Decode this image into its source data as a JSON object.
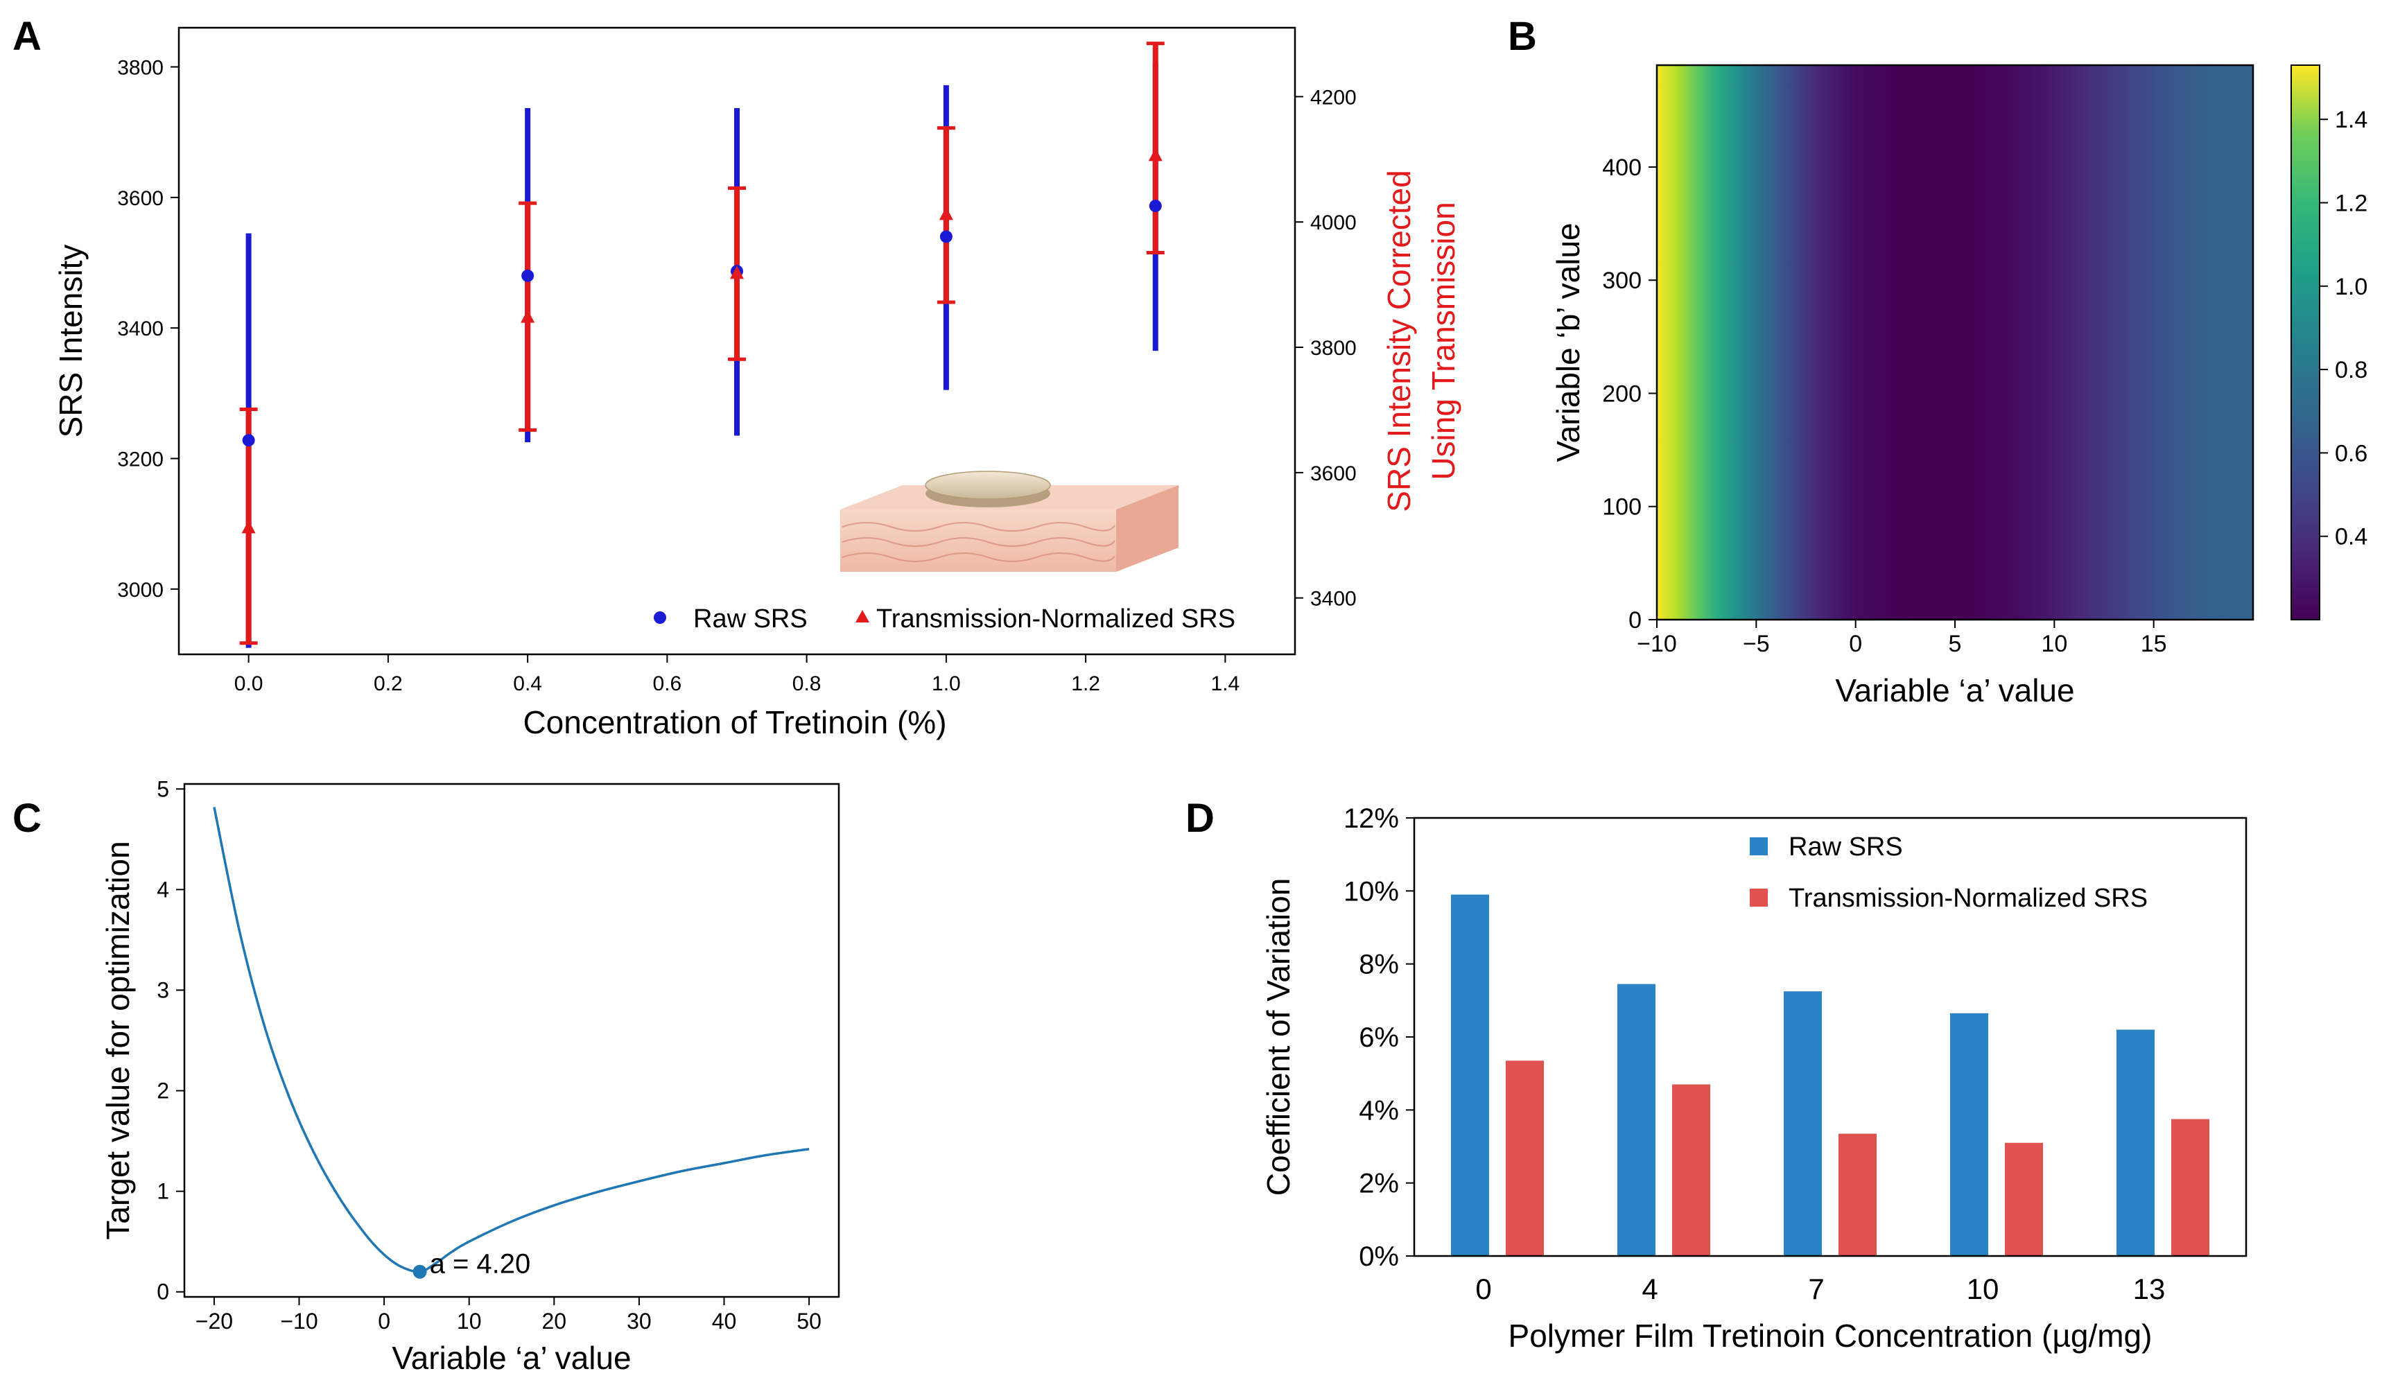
{
  "panel_labels": [
    "A",
    "B",
    "C",
    "D"
  ],
  "colors": {
    "blue": "#1a1ad4",
    "red": "#e31a1c",
    "line": "#1f77b4",
    "bar_blue": "#2b83c5",
    "bar_red": "#e0524f"
  },
  "chart_data": [
    {
      "panel": "A",
      "type": "scatter",
      "title": "",
      "xlabel": "Concentration of Tretinoin (%)",
      "ylabel": "SRS Intensity",
      "y2label_line1": "SRS Intensity Corrected",
      "y2label_line2": "Using Transmission",
      "xlim": [
        -0.1,
        1.5
      ],
      "ylim": [
        2900,
        3860
      ],
      "y2lim": [
        3310,
        4310
      ],
      "xticks": [
        "0.0",
        "0.2",
        "0.4",
        "0.6",
        "0.8",
        "1.0",
        "1.2",
        "1.4"
      ],
      "yticks": [
        "3000",
        "3200",
        "3400",
        "3600",
        "3800"
      ],
      "y2ticks": [
        "3400",
        "3600",
        "3800",
        "4000",
        "4200"
      ],
      "series": [
        {
          "name": "Raw SRS",
          "axis": "left",
          "marker": "circle",
          "x": [
            0.0,
            0.4,
            0.7,
            1.0,
            1.3
          ],
          "y": [
            3228,
            3480,
            3487,
            3540,
            3587
          ],
          "err_low": [
            2910,
            3225,
            3235,
            3305,
            3365
          ],
          "err_high": [
            3545,
            3737,
            3737,
            3772,
            3805
          ]
        },
        {
          "name": "Transmission-Normalized SRS",
          "axis": "right",
          "marker": "triangle",
          "x": [
            0.0,
            0.4,
            0.7,
            1.0,
            1.3
          ],
          "y": [
            3512,
            3848,
            3918,
            4012,
            4106
          ],
          "err_low": [
            3328,
            3668,
            3781,
            3872,
            3951
          ],
          "err_high": [
            3701,
            4030,
            4054,
            4150,
            4285
          ]
        }
      ],
      "legend_placement": "bottom-right",
      "inset": "skin-patch-illustration"
    },
    {
      "panel": "B",
      "type": "heatmap",
      "xlabel": "Variable ‘a’ value",
      "ylabel": "Variable ‘b’ value",
      "xlim": [
        -10,
        20
      ],
      "ylim": [
        0,
        490
      ],
      "xticks": [
        "−10",
        "−5",
        "0",
        "5",
        "10",
        "15"
      ],
      "yticks": [
        "0",
        "100",
        "200",
        "300",
        "400"
      ],
      "colorbar_ticks": [
        "0.4",
        "0.6",
        "0.8",
        "1.0",
        "1.2",
        "1.4"
      ],
      "colorbar_range": [
        0.2,
        1.53
      ],
      "colormap": "viridis",
      "value_function_of_a": [
        [
          -10,
          1.52
        ],
        [
          -9,
          1.38
        ],
        [
          -8,
          1.2
        ],
        [
          -7,
          1.02
        ],
        [
          -6,
          0.87
        ],
        [
          -5,
          0.72
        ],
        [
          -4,
          0.58
        ],
        [
          -3,
          0.46
        ],
        [
          -2,
          0.36
        ],
        [
          -1,
          0.29
        ],
        [
          0,
          0.24
        ],
        [
          1,
          0.215
        ],
        [
          2,
          0.205
        ],
        [
          3,
          0.2
        ],
        [
          4,
          0.2
        ],
        [
          5,
          0.2
        ],
        [
          6,
          0.205
        ],
        [
          7,
          0.215
        ],
        [
          8,
          0.235
        ],
        [
          9,
          0.265
        ],
        [
          10,
          0.3
        ],
        [
          11,
          0.34
        ],
        [
          12,
          0.385
        ],
        [
          13,
          0.43
        ],
        [
          14,
          0.48
        ],
        [
          15,
          0.52
        ],
        [
          16,
          0.56
        ],
        [
          17,
          0.59
        ],
        [
          18,
          0.61
        ],
        [
          19,
          0.62
        ],
        [
          20,
          0.62
        ]
      ]
    },
    {
      "panel": "C",
      "type": "line",
      "xlabel": "Variable ‘a’ value",
      "ylabel": "Target value for optimization",
      "xlim": [
        -23.5,
        53.5
      ],
      "ylim": [
        -0.05,
        5.05
      ],
      "xticks": [
        "−20",
        "−10",
        "0",
        "10",
        "20",
        "30",
        "40",
        "50"
      ],
      "yticks": [
        "0",
        "1",
        "2",
        "3",
        "4",
        "5"
      ],
      "x": [
        -20,
        -17,
        -14,
        -11,
        -8,
        -5,
        -2,
        0,
        2,
        4.2,
        6,
        8,
        10,
        15,
        20,
        25,
        30,
        35,
        40,
        45,
        50
      ],
      "y": [
        4.82,
        3.58,
        2.62,
        1.9,
        1.34,
        0.9,
        0.55,
        0.37,
        0.25,
        0.2,
        0.28,
        0.4,
        0.5,
        0.7,
        0.86,
        0.99,
        1.1,
        1.2,
        1.28,
        1.36,
        1.42
      ],
      "minimum": {
        "x": 4.2,
        "y": 0.2,
        "label": "a = 4.20"
      }
    },
    {
      "panel": "D",
      "type": "bar",
      "xlabel": "Polymer Film Tretinoin Concentration (µg/mg)",
      "ylabel": "Coefficient of Variation",
      "categories": [
        "0",
        "4",
        "7",
        "10",
        "13"
      ],
      "ylim": [
        0,
        12
      ],
      "yticks": [
        "0%",
        "2%",
        "4%",
        "6%",
        "8%",
        "10%",
        "12%"
      ],
      "series": [
        {
          "name": "Raw SRS",
          "values": [
            9.9,
            7.45,
            7.25,
            6.65,
            6.2
          ]
        },
        {
          "name": "Transmission-Normalized SRS",
          "values": [
            5.35,
            4.7,
            3.35,
            3.1,
            3.75
          ]
        }
      ],
      "legend_placement": "top-center"
    }
  ]
}
